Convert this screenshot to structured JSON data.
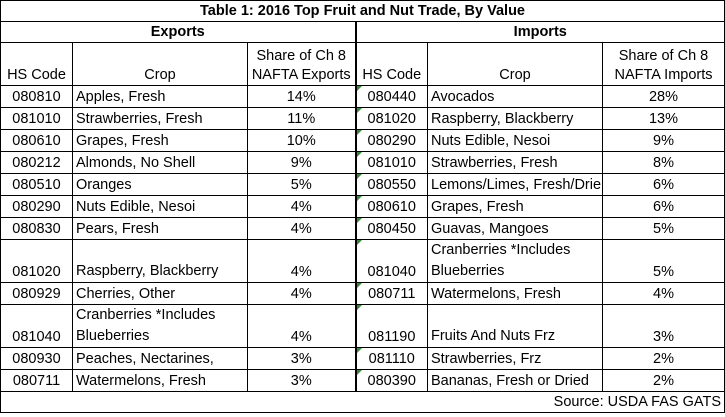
{
  "title": "Table 1: 2016 Top Fruit and Nut Trade, By Value",
  "exports_label": "Exports",
  "imports_label": "Imports",
  "headers": {
    "hs_code": "HS Code",
    "crop": "Crop",
    "exports_share": "Share of Ch 8 NAFTA Exports",
    "imports_share": "Share of Ch 8 NAFTA Imports"
  },
  "rows": [
    {
      "e_code": "080810",
      "e_crop": "Apples, Fresh",
      "e_share": "14%",
      "i_code": "080440",
      "i_crop": "Avocados",
      "i_share": "28%"
    },
    {
      "e_code": "081010",
      "e_crop": "Strawberries, Fresh",
      "e_share": "11%",
      "i_code": "081020",
      "i_crop": "Raspberry, Blackberry",
      "i_share": "13%"
    },
    {
      "e_code": "080610",
      "e_crop": "Grapes, Fresh",
      "e_share": "10%",
      "i_code": "080290",
      "i_crop": "Nuts Edible, Nesoi",
      "i_share": "9%"
    },
    {
      "e_code": "080212",
      "e_crop": "Almonds, No Shell",
      "e_share": "9%",
      "i_code": "081010",
      "i_crop": "Strawberries, Fresh",
      "i_share": "8%"
    },
    {
      "e_code": "080510",
      "e_crop": "Oranges",
      "e_share": "5%",
      "i_code": "080550",
      "i_crop": "Lemons/Limes, Fresh/Drie",
      "i_share": "6%"
    },
    {
      "e_code": "080290",
      "e_crop": "Nuts Edible, Nesoi",
      "e_share": "4%",
      "i_code": "080610",
      "i_crop": "Grapes, Fresh",
      "i_share": "6%"
    },
    {
      "e_code": "080830",
      "e_crop": "Pears, Fresh",
      "e_share": "4%",
      "i_code": "080450",
      "i_crop": "Guavas, Mangoes",
      "i_share": "5%"
    },
    {
      "e_code": "081020",
      "e_crop": "Raspberry, Blackberry",
      "e_share": "4%",
      "i_code": "081040",
      "i_crop": "Cranberries *Includes Blueberries",
      "i_share": "5%"
    },
    {
      "e_code": "080929",
      "e_crop": "Cherries, Other",
      "e_share": "4%",
      "i_code": "080711",
      "i_crop": "Watermelons, Fresh",
      "i_share": "4%"
    },
    {
      "e_code": "081040",
      "e_crop": "Cranberries *Includes Blueberries",
      "e_share": "4%",
      "i_code": "081190",
      "i_crop": "Fruits And Nuts Frz",
      "i_share": "3%"
    },
    {
      "e_code": "080930",
      "e_crop": "Peaches, Nectarines,",
      "e_share": "3%",
      "i_code": "081110",
      "i_crop": "Strawberries, Frz",
      "i_share": "2%"
    },
    {
      "e_code": "080711",
      "e_crop": "Watermelons, Fresh",
      "e_share": "3%",
      "i_code": "080390",
      "i_crop": "Bananas, Fresh or Dried",
      "i_share": "2%"
    }
  ],
  "source": "Source: USDA FAS GATS",
  "colors": {
    "border": "#000000",
    "cell_marker": "#3a8a3a"
  }
}
